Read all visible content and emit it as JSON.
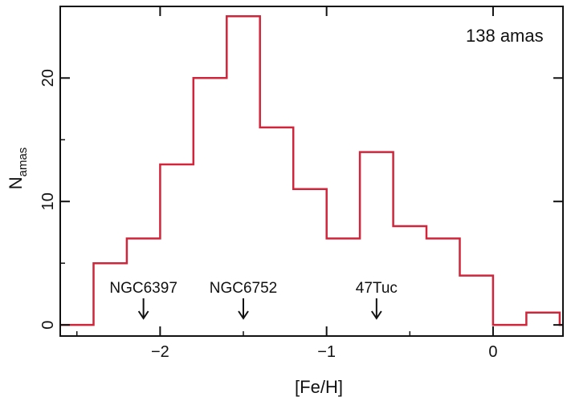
{
  "chart_data": {
    "type": "histogram",
    "xlabel": "[Fe/H]",
    "ylabel": {
      "main": "N",
      "subscript": "amas"
    },
    "xlim": [
      -2.6,
      0.42
    ],
    "ylim": [
      -0.9,
      25.8
    ],
    "x_ticks": [
      -2,
      -1,
      0
    ],
    "x_tick_labels": [
      "−2",
      "−1",
      "0"
    ],
    "y_ticks": [
      0,
      10,
      20
    ],
    "y_tick_labels": [
      "0",
      "10",
      "20"
    ],
    "bin_edges": [
      -2.6,
      -2.4,
      -2.2,
      -2.0,
      -1.8,
      -1.6,
      -1.4,
      -1.2,
      -1.0,
      -0.8,
      -0.6,
      -0.4,
      -0.2,
      0.0,
      0.2,
      0.4,
      0.42
    ],
    "counts": [
      0,
      5,
      7,
      13,
      20,
      25,
      16,
      11,
      7,
      14,
      8,
      7,
      4,
      0,
      1,
      0
    ],
    "line_color": "#d0253a",
    "annotation_text": "138 amas",
    "markers": [
      {
        "label": "NGC6397",
        "x": -2.1
      },
      {
        "label": "NGC6752",
        "x": -1.5
      },
      {
        "label": "47Tuc",
        "x": -0.7
      }
    ]
  }
}
